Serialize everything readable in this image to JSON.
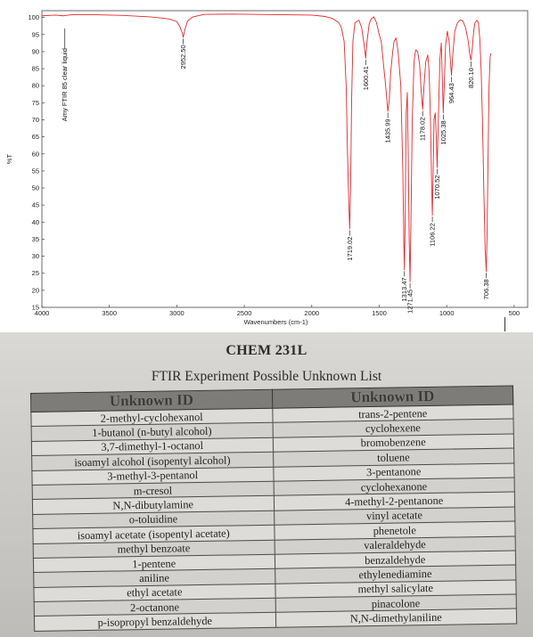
{
  "chart_data": {
    "type": "line",
    "title": "",
    "xlabel": "Wavenumbers (cm-1)",
    "ylabel": "%T",
    "xlim": [
      4000,
      400
    ],
    "xlim_note": "",
    "ylim": [
      15,
      102
    ],
    "x_ticks": [
      4000,
      3500,
      3000,
      2500,
      2000,
      1500,
      1000,
      500
    ],
    "y_ticks": [
      15,
      20,
      25,
      30,
      35,
      40,
      45,
      50,
      55,
      60,
      65,
      70,
      75,
      80,
      85,
      90,
      95,
      100
    ],
    "line_color": "#e8262b",
    "sample_label": "Amy FTIR 85 clear liquid",
    "series": [
      {
        "points": [
          [
            4000,
            100.5
          ],
          [
            3900,
            100.7
          ],
          [
            3840,
            100.5
          ],
          [
            3780,
            100.8
          ],
          [
            3600,
            100.8
          ],
          [
            3400,
            100.6
          ],
          [
            3200,
            100.2
          ],
          [
            3100,
            99.8
          ],
          [
            3050,
            99.5
          ],
          [
            3000,
            98.8
          ],
          [
            2980,
            97.5
          ],
          [
            2960,
            95.5
          ],
          [
            2952.5,
            94.2
          ],
          [
            2940,
            96.5
          ],
          [
            2920,
            99.0
          ],
          [
            2880,
            100.2
          ],
          [
            2800,
            100.9
          ],
          [
            2600,
            101.0
          ],
          [
            2400,
            100.9
          ],
          [
            2200,
            100.8
          ],
          [
            2000,
            100.7
          ],
          [
            1900,
            100.3
          ],
          [
            1850,
            99.8
          ],
          [
            1800,
            98.5
          ],
          [
            1780,
            97.0
          ],
          [
            1760,
            93.0
          ],
          [
            1745,
            80.0
          ],
          [
            1735,
            60.0
          ],
          [
            1725,
            45.0
          ],
          [
            1719.02,
            38.0
          ],
          [
            1712,
            50.0
          ],
          [
            1705,
            75.0
          ],
          [
            1695,
            93.0
          ],
          [
            1680,
            98.5
          ],
          [
            1650,
            99.2
          ],
          [
            1630,
            97.0
          ],
          [
            1612,
            92.0
          ],
          [
            1600.41,
            88.0
          ],
          [
            1590,
            93.0
          ],
          [
            1575,
            98.0
          ],
          [
            1560,
            99.6
          ],
          [
            1540,
            100.2
          ],
          [
            1520,
            98.5
          ],
          [
            1500,
            95.0
          ],
          [
            1485,
            93.0
          ],
          [
            1465,
            85.0
          ],
          [
            1450,
            79.0
          ],
          [
            1435.99,
            72.5
          ],
          [
            1425,
            76.0
          ],
          [
            1415,
            84.0
          ],
          [
            1400,
            90.0
          ],
          [
            1390,
            93.0
          ],
          [
            1375,
            94.0
          ],
          [
            1360,
            90.0
          ],
          [
            1340,
            80.0
          ],
          [
            1325,
            55.0
          ],
          [
            1318,
            35.0
          ],
          [
            1313.47,
            26.0
          ],
          [
            1308,
            40.0
          ],
          [
            1300,
            72.0
          ],
          [
            1292,
            78.0
          ],
          [
            1285,
            60.0
          ],
          [
            1278,
            35.0
          ],
          [
            1271.45,
            22.5
          ],
          [
            1265,
            40.0
          ],
          [
            1255,
            70.0
          ],
          [
            1242,
            87.0
          ],
          [
            1230,
            90.5
          ],
          [
            1215,
            90.0
          ],
          [
            1200,
            86.0
          ],
          [
            1190,
            79.0
          ],
          [
            1178.02,
            73.0
          ],
          [
            1168,
            80.0
          ],
          [
            1155,
            87.0
          ],
          [
            1140,
            89.0
          ],
          [
            1130,
            84.0
          ],
          [
            1120,
            70.0
          ],
          [
            1112,
            52.0
          ],
          [
            1106.22,
            42.0
          ],
          [
            1100,
            55.0
          ],
          [
            1094,
            70.0
          ],
          [
            1085,
            72.0
          ],
          [
            1078,
            66.0
          ],
          [
            1070.52,
            56.0
          ],
          [
            1062,
            70.0
          ],
          [
            1050,
            88.0
          ],
          [
            1040,
            92.5
          ],
          [
            1030,
            79.0
          ],
          [
            1025.38,
            72.0
          ],
          [
            1018,
            80.0
          ],
          [
            1008,
            92.0
          ],
          [
            995,
            96.0
          ],
          [
            982,
            93.0
          ],
          [
            972,
            87.0
          ],
          [
            964.43,
            83.0
          ],
          [
            955,
            89.0
          ],
          [
            940,
            96.0
          ],
          [
            920,
            98.5
          ],
          [
            900,
            99.3
          ],
          [
            880,
            99.0
          ],
          [
            860,
            97.0
          ],
          [
            840,
            93.0
          ],
          [
            830,
            89.5
          ],
          [
            820.1,
            87.5
          ],
          [
            810,
            91.0
          ],
          [
            800,
            96.0
          ],
          [
            790,
            98.5
          ],
          [
            775,
            99.2
          ],
          [
            765,
            98.5
          ],
          [
            755,
            94.0
          ],
          [
            745,
            85.0
          ],
          [
            735,
            70.0
          ],
          [
            725,
            50.0
          ],
          [
            715,
            32.0
          ],
          [
            706.38,
            25.5
          ],
          [
            700,
            38.0
          ],
          [
            693,
            60.0
          ],
          [
            686,
            80.0
          ],
          [
            678,
            88.5
          ],
          [
            672,
            89.5
          ]
        ]
      }
    ],
    "peak_labels": [
      {
        "x": 2952.5,
        "text": "2952.50"
      },
      {
        "x": 1719.02,
        "text": "1719.02"
      },
      {
        "x": 1600.41,
        "text": "1600.41"
      },
      {
        "x": 1435.99,
        "text": "1435.99"
      },
      {
        "x": 1313.47,
        "text": "1313.47"
      },
      {
        "x": 1271.45,
        "text": "1271.45"
      },
      {
        "x": 1178.02,
        "text": "1178.02"
      },
      {
        "x": 1106.22,
        "text": "1106.22"
      },
      {
        "x": 1070.52,
        "text": "1070.52"
      },
      {
        "x": 1025.38,
        "text": "1025.38"
      },
      {
        "x": 964.43,
        "text": "964.43"
      },
      {
        "x": 820.1,
        "text": "820.10"
      },
      {
        "x": 706.38,
        "text": "706.38"
      }
    ]
  },
  "handout": {
    "course": "CHEM 231L",
    "title": "FTIR Experiment Possible Unknown List",
    "headers": [
      "Unknown ID",
      "Unknown ID"
    ],
    "rows": [
      [
        "2-methyl-cyclohexanol",
        "trans-2-pentene"
      ],
      [
        "1-butanol (n-butyl alcohol)",
        "cyclohexene"
      ],
      [
        "3,7-dimethyl-1-octanol",
        "bromobenzene"
      ],
      [
        "isoamyl alcohol (isopentyl alcohol)",
        "toluene"
      ],
      [
        "3-methyl-3-pentanol",
        "3-pentanone"
      ],
      [
        "m-cresol",
        "cyclohexanone"
      ],
      [
        "N,N-dibutylamine",
        "4-methyl-2-pentanone"
      ],
      [
        "o-toluidine",
        "vinyl acetate"
      ],
      [
        "isoamyl acetate (isopentyl acetate)",
        "phenetole"
      ],
      [
        "methyl benzoate",
        "valeraldehyde"
      ],
      [
        "1-pentene",
        "benzaldehyde"
      ],
      [
        "aniline",
        "ethylenediamine"
      ],
      [
        "ethyl acetate",
        "methyl salicylate"
      ],
      [
        "2-octanone",
        "pinacolone"
      ],
      [
        "p-isopropyl benzaldehyde",
        "N,N-dimethylaniline"
      ]
    ]
  }
}
